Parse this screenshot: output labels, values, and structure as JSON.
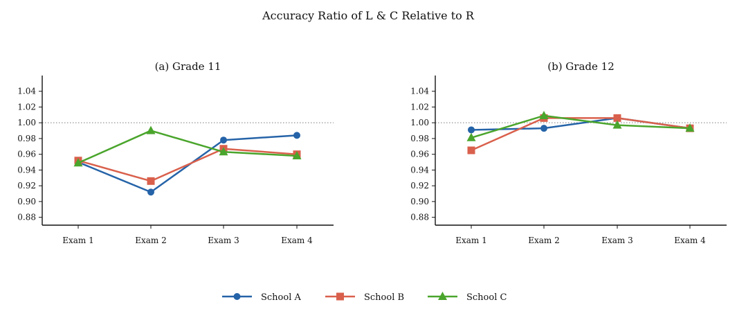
{
  "figure_title": "Accuracy Ratio of L & C Relative to R",
  "colors": {
    "School A": "#2563a8",
    "School B": "#d9604c",
    "School C": "#4aa52c",
    "reference": "#888888"
  },
  "legend": [
    {
      "label": "School A",
      "marker": "circle",
      "color": "#2563a8"
    },
    {
      "label": "School B",
      "marker": "square",
      "color": "#d9604c"
    },
    {
      "label": "School C",
      "marker": "triangle",
      "color": "#4aa52c"
    }
  ],
  "chart_data": [
    {
      "type": "line",
      "title": "(a) Grade 11",
      "categories": [
        "Exam 1",
        "Exam 2",
        "Exam 3",
        "Exam 4"
      ],
      "yticks": [
        "0.88",
        "0.90",
        "0.92",
        "0.94",
        "0.96",
        "0.98",
        "1.00",
        "1.02",
        "1.04"
      ],
      "ylim": [
        0.87,
        1.06
      ],
      "reference_line": 1.0,
      "series": [
        {
          "name": "School A",
          "values": [
            0.95,
            0.912,
            0.978,
            0.984
          ]
        },
        {
          "name": "School B",
          "values": [
            0.952,
            0.926,
            0.967,
            0.96
          ]
        },
        {
          "name": "School C",
          "values": [
            0.949,
            0.99,
            0.963,
            0.958
          ]
        }
      ]
    },
    {
      "type": "line",
      "title": "(b) Grade 12",
      "categories": [
        "Exam 1",
        "Exam 2",
        "Exam 3",
        "Exam 4"
      ],
      "yticks": [
        "0.88",
        "0.90",
        "0.92",
        "0.94",
        "0.96",
        "0.98",
        "1.00",
        "1.02",
        "1.04"
      ],
      "ylim": [
        0.87,
        1.06
      ],
      "reference_line": 1.0,
      "series": [
        {
          "name": "School A",
          "values": [
            0.991,
            0.993,
            1.006,
            0.993
          ]
        },
        {
          "name": "School B",
          "values": [
            0.965,
            1.006,
            1.006,
            0.993
          ]
        },
        {
          "name": "School C",
          "values": [
            0.981,
            1.009,
            0.997,
            0.993
          ]
        }
      ]
    }
  ]
}
